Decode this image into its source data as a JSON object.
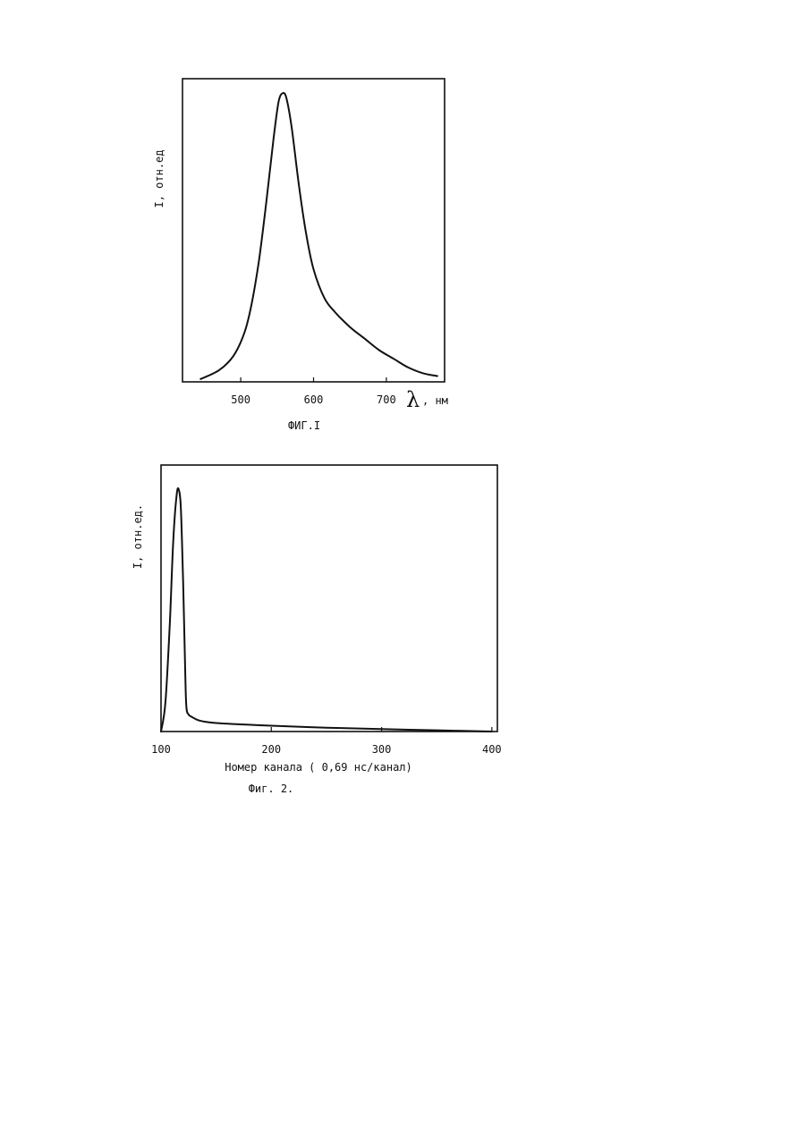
{
  "chart_data": [
    {
      "type": "line",
      "caption": "ФИГ.I",
      "ylabel": "I, отн.ед",
      "xlabel_symbol": "λ",
      "xlabel_unit": ", нм",
      "xlim": [
        420,
        780
      ],
      "ylim": [
        0,
        1.05
      ],
      "xticks": [
        500,
        600,
        700
      ],
      "series": [
        {
          "x": [
            445,
            470,
            490,
            505,
            515,
            525,
            535,
            545,
            552,
            558,
            563,
            570,
            580,
            590,
            600,
            615,
            630,
            650,
            670,
            690,
            710,
            730,
            750,
            770
          ],
          "values": [
            0.01,
            0.04,
            0.09,
            0.17,
            0.27,
            0.42,
            0.62,
            0.84,
            0.97,
            1.0,
            0.98,
            0.88,
            0.68,
            0.51,
            0.39,
            0.29,
            0.24,
            0.19,
            0.15,
            0.11,
            0.08,
            0.05,
            0.03,
            0.02
          ]
        }
      ]
    },
    {
      "type": "line",
      "caption": "Фиг. 2.",
      "ylabel": "I, отн.ед.",
      "xlabel": "Номер канала ( 0,69 нс/канал)",
      "xlim": [
        100,
        405
      ],
      "ylim": [
        0,
        1.1
      ],
      "xticks": [
        100,
        200,
        300,
        400
      ],
      "series": [
        {
          "x": [
            100,
            104,
            108,
            111,
            114,
            116,
            118,
            120,
            122,
            123,
            125,
            128,
            135,
            150,
            175,
            200,
            250,
            300,
            350,
            400
          ],
          "values": [
            0.0,
            0.12,
            0.45,
            0.78,
            0.97,
            1.0,
            0.92,
            0.62,
            0.24,
            0.1,
            0.07,
            0.06,
            0.045,
            0.035,
            0.029,
            0.024,
            0.016,
            0.01,
            0.005,
            0.0
          ]
        }
      ]
    }
  ]
}
